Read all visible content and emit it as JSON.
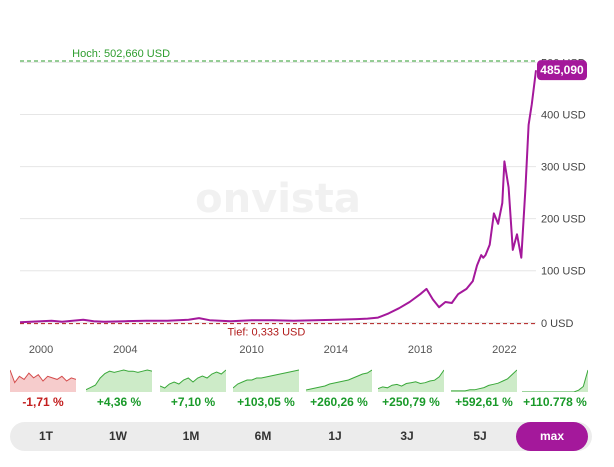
{
  "watermark": "onvista",
  "chart_data": {
    "type": "line",
    "x_range": [
      1999,
      2023.5
    ],
    "ylim": [
      -10,
      520
    ],
    "y_ticks": [
      {
        "value": 0,
        "label": "0 USD"
      },
      {
        "value": 100,
        "label": "100 USD"
      },
      {
        "value": 200,
        "label": "200 USD"
      },
      {
        "value": 300,
        "label": "300 USD"
      },
      {
        "value": 400,
        "label": "400 USD"
      },
      {
        "value": 500,
        "label": "500 USD"
      }
    ],
    "x_ticks": [
      {
        "value": 2000,
        "label": "2000"
      },
      {
        "value": 2004,
        "label": "2004"
      },
      {
        "value": 2010,
        "label": "2010"
      },
      {
        "value": 2014,
        "label": "2014"
      },
      {
        "value": 2018,
        "label": "2018"
      },
      {
        "value": 2022,
        "label": "2022"
      }
    ],
    "high": {
      "value": 502.66,
      "label": "Hoch: 502,660 USD"
    },
    "low": {
      "value": 0.333,
      "label": "Tief: 0,333 USD"
    },
    "current": {
      "value": 485.09,
      "label": "485,090"
    },
    "line_color": "#a4189b",
    "high_color": "#2e9d2e",
    "low_color": "#b11c1c",
    "series": [
      {
        "x": [
          1999.0,
          1999.5,
          2000.0,
          2000.5,
          2001.0,
          2001.5,
          2002.0,
          2002.5,
          2003.0,
          2004.0,
          2005.0,
          2006.0,
          2007.0,
          2007.5,
          2008.0,
          2008.5,
          2009.0,
          2010.0,
          2011.0,
          2012.0,
          2013.0,
          2014.0,
          2015.0,
          2015.5,
          2016.0,
          2016.5,
          2017.0,
          2017.5,
          2018.0,
          2018.3,
          2018.6,
          2018.9,
          2019.2,
          2019.5,
          2019.8,
          2020.0,
          2020.2,
          2020.5,
          2020.7,
          2020.9,
          2021.0,
          2021.1,
          2021.3,
          2021.5,
          2021.7,
          2021.9,
          2022.0,
          2022.2,
          2022.4,
          2022.6,
          2022.8,
          2023.0,
          2023.15,
          2023.3,
          2023.5
        ],
        "y": [
          1,
          2,
          3,
          4,
          2,
          4,
          6,
          3,
          2,
          3,
          4,
          4,
          6,
          9,
          5,
          4,
          3,
          5,
          5,
          4,
          5,
          6,
          7,
          8,
          10,
          18,
          28,
          40,
          55,
          65,
          45,
          30,
          40,
          38,
          55,
          60,
          65,
          80,
          110,
          130,
          125,
          130,
          150,
          210,
          190,
          230,
          310,
          260,
          140,
          170,
          125,
          260,
          380,
          420,
          485.09
        ]
      }
    ]
  },
  "sparklines": [
    {
      "pct": "-1,71 %",
      "trend": "neg",
      "points": [
        14,
        6,
        10,
        8,
        12,
        9,
        11,
        7,
        10,
        9,
        8,
        10,
        7,
        9,
        8
      ]
    },
    {
      "pct": "+4,36 %",
      "trend": "pos",
      "points": [
        2,
        4,
        6,
        12,
        16,
        18,
        17,
        18,
        19,
        18,
        18,
        17,
        18,
        19,
        18
      ]
    },
    {
      "pct": "+7,10 %",
      "trend": "pos",
      "points": [
        6,
        4,
        8,
        10,
        8,
        12,
        14,
        10,
        14,
        16,
        14,
        18,
        20,
        18,
        22
      ]
    },
    {
      "pct": "+103,05 %",
      "trend": "pos",
      "points": [
        4,
        8,
        10,
        12,
        12,
        14,
        14,
        15,
        16,
        17,
        18,
        19,
        20,
        21,
        22
      ]
    },
    {
      "pct": "+260,26 %",
      "trend": "pos",
      "points": [
        2,
        3,
        4,
        5,
        6,
        8,
        9,
        10,
        11,
        12,
        14,
        16,
        18,
        19,
        22
      ]
    },
    {
      "pct": "+250,79 %",
      "trend": "pos",
      "points": [
        4,
        6,
        5,
        8,
        9,
        7,
        10,
        11,
        12,
        10,
        11,
        13,
        14,
        18,
        26
      ]
    },
    {
      "pct": "+592,61 %",
      "trend": "pos",
      "points": [
        1,
        1,
        1,
        1,
        2,
        2,
        3,
        4,
        6,
        7,
        8,
        10,
        12,
        16,
        20
      ]
    },
    {
      "pct": "+110.778 %",
      "trend": "pos",
      "points": [
        0,
        0,
        0,
        0,
        0,
        0,
        0,
        0,
        0,
        0,
        0,
        0,
        1,
        3,
        12
      ]
    }
  ],
  "range_buttons": [
    {
      "label": "1T",
      "active": false
    },
    {
      "label": "1W",
      "active": false
    },
    {
      "label": "1M",
      "active": false
    },
    {
      "label": "6M",
      "active": false
    },
    {
      "label": "1J",
      "active": false
    },
    {
      "label": "3J",
      "active": false
    },
    {
      "label": "5J",
      "active": false
    },
    {
      "label": "max",
      "active": true
    }
  ]
}
